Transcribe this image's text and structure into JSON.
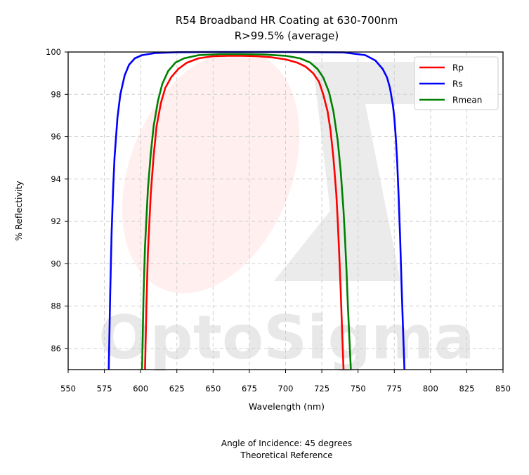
{
  "chart_data": {
    "type": "line",
    "title": "R54 Broadband HR Coating at 630-700nm",
    "subtitle": "R>99.5% (average)",
    "xlabel": "Wavelength (nm)",
    "ylabel": "% Reflectivity",
    "xlim": [
      550,
      850
    ],
    "ylim": [
      85,
      100
    ],
    "xticks": [
      "550",
      "575",
      "600",
      "625",
      "650",
      "675",
      "700",
      "725",
      "750",
      "775",
      "800",
      "825",
      "850"
    ],
    "yticks": [
      "86",
      "88",
      "90",
      "92",
      "94",
      "96",
      "98",
      "100"
    ],
    "grid": true,
    "legend_position": "top-right",
    "series": [
      {
        "name": "Rp",
        "color": "#ff0000",
        "x": [
          603,
          604,
          605,
          607,
          609,
          611,
          614,
          617,
          621,
          626,
          632,
          640,
          650,
          660,
          670,
          680,
          690,
          700,
          708,
          714,
          719,
          723,
          726,
          729,
          731,
          733,
          735,
          736,
          737,
          738,
          739,
          740
        ],
        "y": [
          85.0,
          88.0,
          90.5,
          93.3,
          95.1,
          96.5,
          97.6,
          98.3,
          98.8,
          99.2,
          99.5,
          99.7,
          99.8,
          99.82,
          99.82,
          99.8,
          99.75,
          99.65,
          99.5,
          99.3,
          99.0,
          98.6,
          98.0,
          97.2,
          96.3,
          95.0,
          93.3,
          92.0,
          90.5,
          88.8,
          86.8,
          85.0
        ]
      },
      {
        "name": "Rs",
        "color": "#0000ff",
        "x": [
          578,
          579,
          580,
          581,
          582,
          584,
          586,
          589,
          592,
          596,
          601,
          610,
          625,
          650,
          700,
          740,
          755,
          762,
          767,
          770,
          772,
          774,
          775,
          776,
          777,
          778,
          779,
          780,
          781,
          782
        ],
        "y": [
          85.0,
          88.5,
          91.5,
          93.5,
          95.0,
          96.9,
          98.0,
          98.9,
          99.4,
          99.7,
          99.85,
          99.95,
          99.99,
          100.0,
          100.0,
          99.98,
          99.85,
          99.6,
          99.2,
          98.8,
          98.3,
          97.5,
          96.9,
          96.0,
          94.8,
          93.2,
          91.3,
          89.0,
          87.0,
          85.0
        ]
      },
      {
        "name": "Rmean",
        "color": "#008000",
        "x": [
          601,
          602,
          603,
          605,
          607,
          609,
          612,
          615,
          619,
          624,
          630,
          640,
          655,
          670,
          685,
          700,
          710,
          717,
          722,
          726,
          730,
          733,
          736,
          738,
          740,
          741,
          742,
          743,
          744,
          745
        ],
        "y": [
          85.0,
          88.5,
          90.8,
          93.5,
          95.2,
          96.5,
          97.7,
          98.5,
          99.1,
          99.5,
          99.7,
          99.85,
          99.9,
          99.9,
          99.88,
          99.82,
          99.7,
          99.5,
          99.2,
          98.8,
          98.1,
          97.2,
          95.8,
          94.4,
          92.5,
          91.2,
          89.7,
          88.0,
          86.5,
          85.0
        ]
      }
    ]
  },
  "watermark": {
    "text": "OptoSigma"
  },
  "footer": {
    "line1": "Angle of Incidence: 45 degrees",
    "line2": "Theoretical Reference"
  }
}
